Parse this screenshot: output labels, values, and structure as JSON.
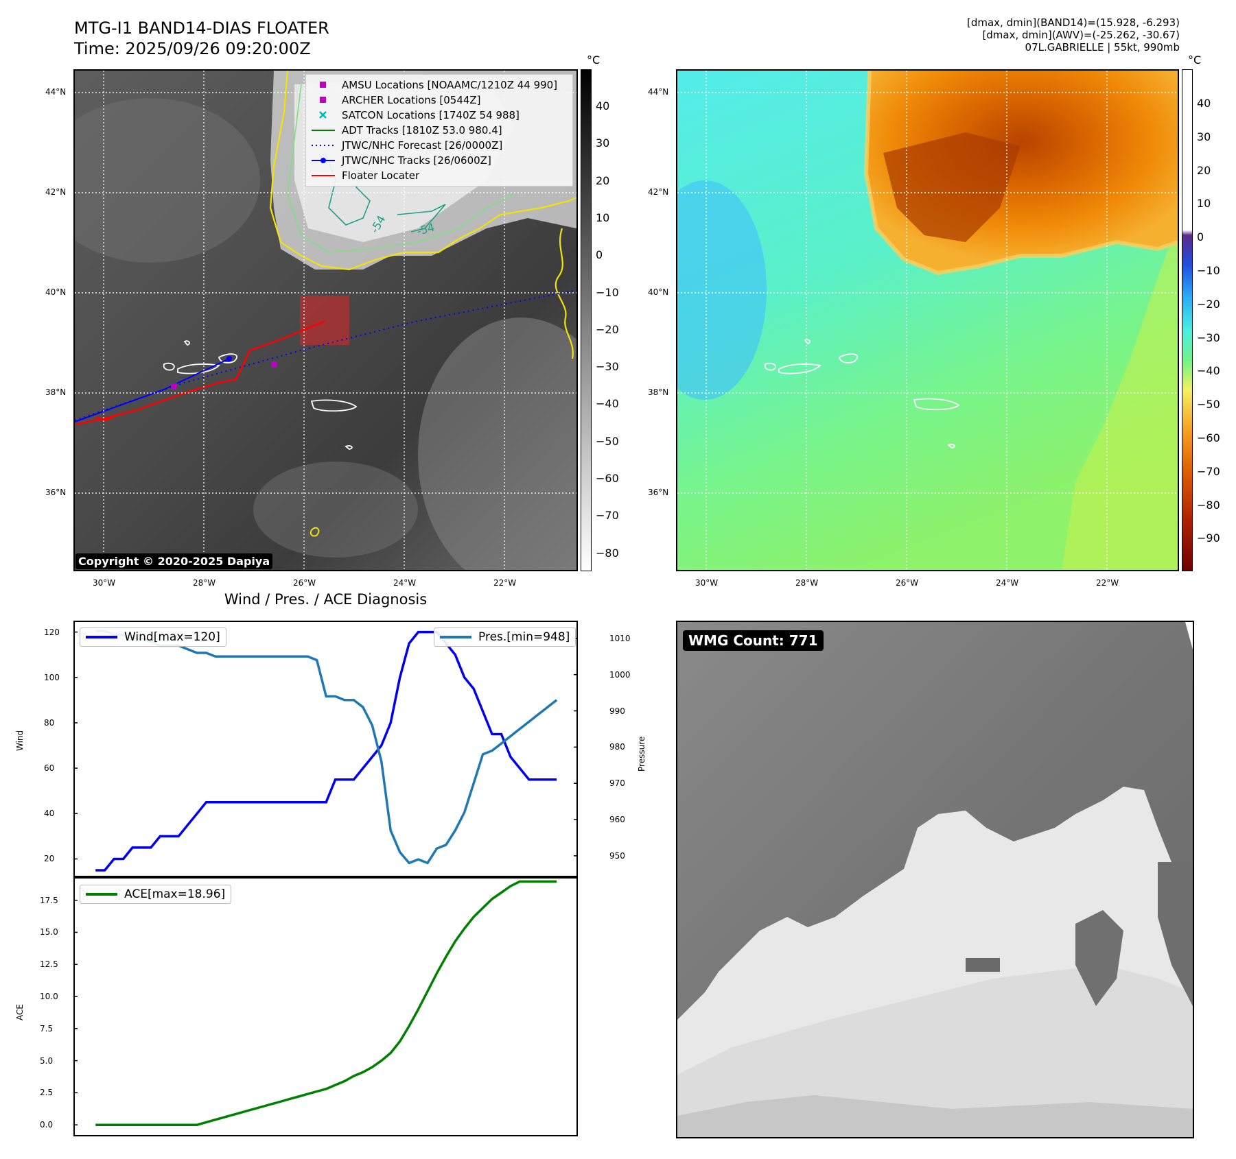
{
  "header": {
    "title": "MTG-I1 BAND14-DIAS FLOATER",
    "time": "Time: 2025/09/26 09:20:00Z",
    "info_line1": "[dmax, dmin](BAND14)=(15.928, -6.293)",
    "info_line2": "[dmax, dmin](AWV)=(-25.262, -30.67)",
    "info_line3": "07L.GABRIELLE | 55kt, 990mb"
  },
  "map_panels": {
    "lat_labels": [
      "44°N",
      "42°N",
      "40°N",
      "38°N",
      "36°N"
    ],
    "lon_labels": [
      "30°W",
      "28°W",
      "26°W",
      "24°W",
      "22°W"
    ],
    "copyright": "Copyright © 2020-2025 Dapiya",
    "contour_label": "-54"
  },
  "ir_colorbar": {
    "unit": "°C",
    "ticks": [
      "40",
      "30",
      "20",
      "10",
      "0",
      "−10",
      "−20",
      "−30",
      "−40",
      "−50",
      "−60",
      "−70",
      "−80"
    ]
  },
  "awv_colorbar": {
    "unit": "°C",
    "ticks": [
      "40",
      "30",
      "20",
      "10",
      "0",
      "−10",
      "−20",
      "−30",
      "−40",
      "−50",
      "−60",
      "−70",
      "−80",
      "−90"
    ]
  },
  "map_legend": {
    "items": [
      {
        "label": "AMSU Locations [NOAAMC/1210Z 44 990]",
        "color": "#c000c0",
        "icon": "square-marker"
      },
      {
        "label": "ARCHER Locations [0544Z]",
        "color": "#c000c0",
        "icon": "square-marker"
      },
      {
        "label": "SATCON Locations [1740Z 54 988]",
        "color": "#00b8b8",
        "icon": "x-marker"
      },
      {
        "label": "ADT Tracks [1810Z 53.0 980.4]",
        "color": "#008000",
        "icon": "solid-line"
      },
      {
        "label": "JTWC/NHC Forecast [26/0000Z]",
        "color": "#0000ff",
        "icon": "dotted-line"
      },
      {
        "label": "JTWC/NHC Tracks [26/0600Z]",
        "color": "#0000ff",
        "icon": "line-dot"
      },
      {
        "label": "Floater Locater",
        "color": "#ff0000",
        "icon": "solid-line"
      }
    ]
  },
  "diagnosis": {
    "title": "Wind / Pres. / ACE Diagnosis",
    "wind_legend": "Wind[max=120]",
    "pres_legend": "Pres.[min=948]",
    "ace_legend": "ACE[max=18.96]",
    "wind_axis_label": "Wind",
    "pres_axis_label": "Pressure",
    "ace_axis_label": "ACE",
    "wind_ticks": [
      "120",
      "100",
      "80",
      "60",
      "40",
      "20"
    ],
    "pres_ticks": [
      "1010",
      "1000",
      "990",
      "980",
      "970",
      "960",
      "950"
    ],
    "ace_ticks": [
      "17.5",
      "15.0",
      "12.5",
      "10.0",
      "7.5",
      "5.0",
      "2.5",
      "0.0"
    ]
  },
  "wmg": {
    "count_label": "WMG Count: 771"
  },
  "chart_data": [
    {
      "type": "line",
      "title": "Wind / Pres. / ACE Diagnosis",
      "series": [
        {
          "name": "Wind[max=120]",
          "color": "#0000ee",
          "axis": "Wind",
          "x": [
            0,
            1,
            2,
            3,
            4,
            5,
            6,
            7,
            8,
            9,
            10,
            11,
            12,
            13,
            14,
            15,
            16,
            17,
            18,
            19,
            20,
            21,
            22,
            23,
            24,
            25,
            26,
            27,
            28,
            29,
            30,
            31,
            32,
            33,
            34,
            35,
            36,
            37,
            38,
            39,
            40,
            41,
            42,
            43,
            44,
            45,
            46,
            47,
            48,
            49,
            50
          ],
          "values": [
            15,
            15,
            20,
            20,
            25,
            25,
            25,
            30,
            30,
            30,
            35,
            40,
            45,
            45,
            45,
            45,
            45,
            45,
            45,
            45,
            45,
            45,
            45,
            45,
            45,
            45,
            55,
            55,
            55,
            60,
            65,
            70,
            80,
            100,
            115,
            120,
            120,
            120,
            115,
            110,
            100,
            95,
            85,
            75,
            75,
            65,
            60,
            55,
            55,
            55,
            55
          ]
        },
        {
          "name": "Pres.[min=948]",
          "color": "#1f77b4",
          "axis": "Pressure",
          "x": [
            0,
            1,
            2,
            3,
            4,
            5,
            6,
            7,
            8,
            9,
            10,
            11,
            12,
            13,
            14,
            15,
            16,
            17,
            18,
            19,
            20,
            21,
            22,
            23,
            24,
            25,
            26,
            27,
            28,
            29,
            30,
            31,
            32,
            33,
            34,
            35,
            36,
            37,
            38,
            39,
            40,
            41,
            42,
            43,
            44,
            45,
            46,
            47,
            48,
            49,
            50
          ],
          "values": [
            1012,
            1012,
            1011,
            1011,
            1010,
            1010,
            1009,
            1008,
            1008,
            1008,
            1007,
            1006,
            1006,
            1005,
            1005,
            1005,
            1005,
            1005,
            1005,
            1005,
            1005,
            1005,
            1005,
            1005,
            1004,
            994,
            994,
            993,
            993,
            991,
            986,
            976,
            957,
            951,
            948,
            949,
            948,
            952,
            953,
            957,
            962,
            970,
            978,
            979,
            981,
            983,
            985,
            987,
            989,
            991,
            993
          ]
        }
      ],
      "ylabel": "Wind",
      "ylim": [
        15,
        122
      ],
      "y2label": "Pressure",
      "y2lim": [
        946,
        1013
      ]
    },
    {
      "type": "line",
      "series": [
        {
          "name": "ACE[max=18.96]",
          "color": "#008000",
          "x": [
            0,
            1,
            2,
            3,
            4,
            5,
            6,
            7,
            8,
            9,
            10,
            11,
            12,
            13,
            14,
            15,
            16,
            17,
            18,
            19,
            20,
            21,
            22,
            23,
            24,
            25,
            26,
            27,
            28,
            29,
            30,
            31,
            32,
            33,
            34,
            35,
            36,
            37,
            38,
            39,
            40,
            41,
            42,
            43,
            44,
            45,
            46,
            47,
            48,
            49,
            50
          ],
          "values": [
            0,
            0,
            0,
            0,
            0,
            0,
            0,
            0,
            0,
            0,
            0,
            0,
            0.2,
            0.4,
            0.6,
            0.8,
            1.0,
            1.2,
            1.4,
            1.6,
            1.8,
            2.0,
            2.2,
            2.4,
            2.6,
            2.8,
            3.1,
            3.4,
            3.8,
            4.1,
            4.5,
            5.0,
            5.6,
            6.5,
            7.7,
            9.0,
            10.4,
            11.8,
            13.1,
            14.3,
            15.3,
            16.2,
            16.9,
            17.6,
            18.1,
            18.6,
            18.96,
            18.96,
            18.96,
            18.96,
            18.96
          ]
        }
      ],
      "ylabel": "ACE",
      "ylim": [
        -0.9,
        19.3
      ]
    }
  ]
}
